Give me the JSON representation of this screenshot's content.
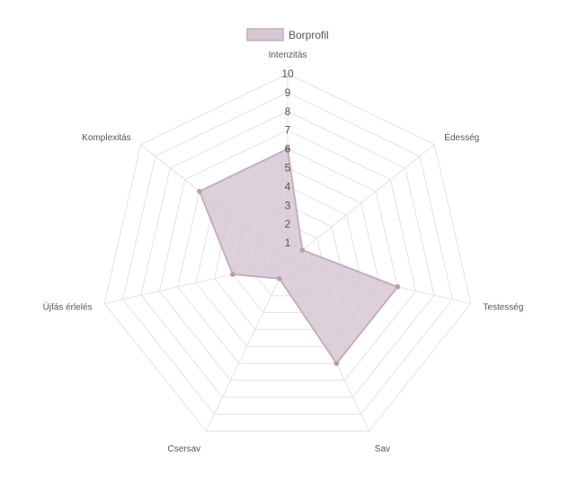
{
  "chart_data": {
    "type": "radar",
    "legend": {
      "position": "top",
      "entries": [
        "Borprofil"
      ]
    },
    "axes": [
      "Intenzitás",
      "Édesség",
      "Testesség",
      "Sav",
      "Csersav",
      "Újfás érlelés",
      "Komplexitás"
    ],
    "ticks": [
      "1",
      "2",
      "3",
      "4",
      "5",
      "6",
      "7",
      "8",
      "9",
      "10"
    ],
    "r_range": [
      0,
      10
    ],
    "grid": true,
    "series": [
      {
        "name": "Borprofil",
        "values": [
          6,
          1,
          6,
          6,
          1,
          3,
          6
        ],
        "fill_color": "#d8c8d4",
        "stroke_color": "#c4afbd",
        "point_color": "#b79aad"
      }
    ]
  }
}
